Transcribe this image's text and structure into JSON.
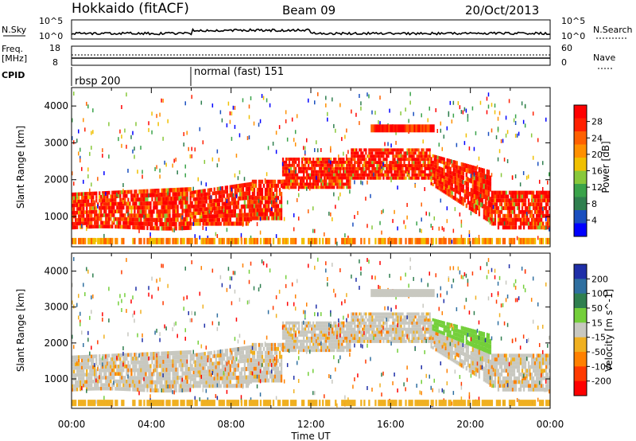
{
  "header": {
    "station": "Hokkaido (fitACF)",
    "beam": "Beam 09",
    "date": "20/Oct/2013"
  },
  "top_panels": {
    "nsky_label": "N.Sky",
    "nsky_ticks": [
      "10^5",
      "10^0"
    ],
    "nsearch_label": "N.Search",
    "nsearch_ticks": [
      "10^5",
      "10^0"
    ],
    "freq_label": "Freq.",
    "freq_unit": "[MHz]",
    "freq_ticks": [
      "18",
      "8"
    ],
    "nave_label": "Nave",
    "nave_ticks": [
      "60",
      "0"
    ],
    "cpid_label": "CPID",
    "cpid_segments": [
      {
        "label": "rbsp 200",
        "start_hour": 0
      },
      {
        "label": "normal (fast) 151",
        "start_hour": 6
      }
    ]
  },
  "x_axis": {
    "label": "Time UT",
    "ticks": [
      "00:00",
      "04:00",
      "08:00",
      "12:00",
      "16:00",
      "20:00",
      "00:00"
    ]
  },
  "colors": {
    "power_scale": [
      "#0000ff",
      "#1a4fbf",
      "#2f7f4f",
      "#3aa34a",
      "#88c83a",
      "#f0c000",
      "#ff9000",
      "#ff6000",
      "#ff2000",
      "#ff0000"
    ],
    "velocity_scale": [
      "#1f2fa8",
      "#2f6fa0",
      "#2f7f4f",
      "#74cf3a",
      "#c8c8c0",
      "#f0b020",
      "#ff8000",
      "#ff3a00",
      "#ff0000"
    ]
  },
  "chart_data": [
    {
      "type": "heatmap",
      "title": "",
      "xlabel": "Time UT",
      "ylabel": "Slant Range [km]",
      "xlim": [
        0,
        24
      ],
      "ylim": [
        180,
        4500
      ],
      "y_ticks": [
        "1000",
        "2000",
        "3000",
        "4000"
      ],
      "colorbar": {
        "label": "Power [dB]",
        "min": 0,
        "max": 32,
        "ticks": [
          "4",
          "8",
          "12",
          "16",
          "20",
          "24",
          "28"
        ]
      },
      "description_bands": [
        {
          "t_start": 0,
          "t_end": 6,
          "range_low": 700,
          "range_high": 2000,
          "level": "high"
        },
        {
          "t_start": 6,
          "t_end": 10,
          "range_low": 800,
          "range_high": 2000,
          "level": "high"
        },
        {
          "t_start": 10,
          "t_end": 18.5,
          "range_low": 1700,
          "range_high": 2800,
          "level": "high"
        },
        {
          "t_start": 18.5,
          "t_end": 24,
          "range_low": 700,
          "range_high": 2700,
          "level": "high"
        }
      ]
    },
    {
      "type": "heatmap",
      "title": "",
      "xlabel": "Time UT",
      "ylabel": "Slant Range [km]",
      "xlim": [
        0,
        24
      ],
      "ylim": [
        180,
        4500
      ],
      "y_ticks": [
        "1000",
        "2000",
        "3000",
        "4000"
      ],
      "colorbar": {
        "label": "Velocity [m s^-1]",
        "min": -250,
        "max": 250,
        "ticks": [
          "200",
          "100",
          "50",
          "15",
          "-15",
          "-50",
          "-100",
          "-200"
        ]
      }
    }
  ]
}
